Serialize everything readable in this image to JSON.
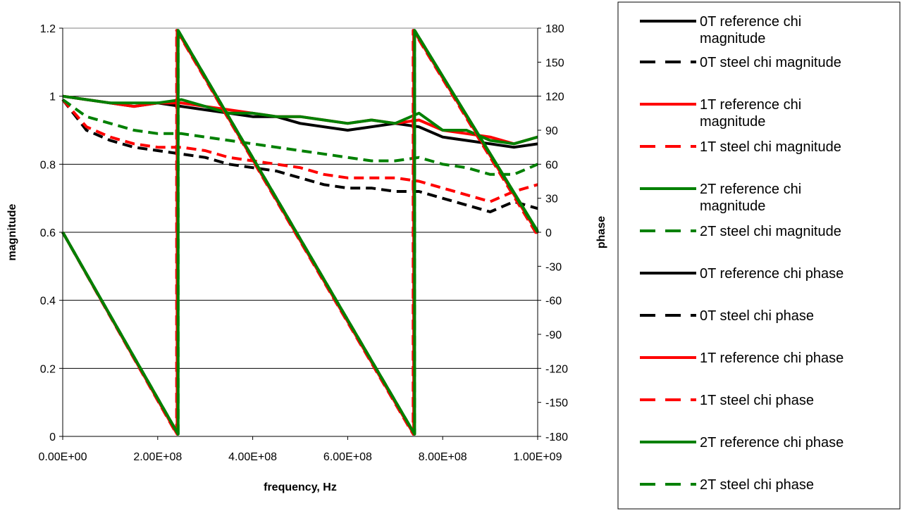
{
  "chart_data": {
    "type": "line",
    "title": "",
    "xlabel": "frequency, Hz",
    "ylabel": "magnitude",
    "y2label": "phase",
    "xlim": [
      0,
      1000000000
    ],
    "ylim": [
      0,
      1.2
    ],
    "y2lim": [
      -180,
      180
    ],
    "x_ticks": [
      "0.00E+00",
      "2.00E+08",
      "4.00E+08",
      "6.00E+08",
      "8.00E+08",
      "1.00E+09"
    ],
    "y_ticks": [
      "0",
      "0.2",
      "0.4",
      "0.6",
      "0.8",
      "1",
      "1.2"
    ],
    "y2_ticks": [
      "-180",
      "-150",
      "-120",
      "-90",
      "-60",
      "-30",
      "0",
      "30",
      "60",
      "90",
      "120",
      "150",
      "180"
    ],
    "grid": "horizontal",
    "legend_position": "right",
    "series": [
      {
        "name": "0T reference chi magnitude",
        "axis": "left",
        "style": "solid",
        "color": "#000000",
        "x": [
          0,
          50000000.0,
          100000000.0,
          150000000.0,
          200000000.0,
          250000000.0,
          300000000.0,
          350000000.0,
          400000000.0,
          450000000.0,
          500000000.0,
          550000000.0,
          600000000.0,
          650000000.0,
          700000000.0,
          750000000.0,
          800000000.0,
          850000000.0,
          900000000.0,
          950000000.0,
          1000000000.0
        ],
        "values": [
          1.0,
          0.99,
          0.98,
          0.97,
          0.98,
          0.97,
          0.96,
          0.95,
          0.94,
          0.94,
          0.92,
          0.91,
          0.9,
          0.91,
          0.92,
          0.91,
          0.88,
          0.87,
          0.86,
          0.85,
          0.86
        ]
      },
      {
        "name": "0T steel chi magnitude",
        "axis": "left",
        "style": "dashed",
        "color": "#000000",
        "x": [
          0,
          50000000.0,
          100000000.0,
          150000000.0,
          200000000.0,
          250000000.0,
          300000000.0,
          350000000.0,
          400000000.0,
          450000000.0,
          500000000.0,
          550000000.0,
          600000000.0,
          650000000.0,
          700000000.0,
          750000000.0,
          800000000.0,
          850000000.0,
          900000000.0,
          950000000.0,
          1000000000.0
        ],
        "values": [
          0.99,
          0.9,
          0.87,
          0.85,
          0.84,
          0.83,
          0.82,
          0.8,
          0.79,
          0.78,
          0.76,
          0.74,
          0.73,
          0.73,
          0.72,
          0.72,
          0.7,
          0.68,
          0.66,
          0.69,
          0.67
        ]
      },
      {
        "name": "1T reference chi magnitude",
        "axis": "left",
        "style": "solid",
        "color": "#ff0000",
        "x": [
          0,
          50000000.0,
          100000000.0,
          150000000.0,
          200000000.0,
          250000000.0,
          300000000.0,
          350000000.0,
          400000000.0,
          450000000.0,
          500000000.0,
          550000000.0,
          600000000.0,
          650000000.0,
          700000000.0,
          750000000.0,
          800000000.0,
          850000000.0,
          900000000.0,
          950000000.0,
          1000000000.0
        ],
        "values": [
          1.0,
          0.99,
          0.98,
          0.97,
          0.98,
          0.98,
          0.97,
          0.96,
          0.95,
          0.94,
          0.94,
          0.93,
          0.92,
          0.93,
          0.92,
          0.93,
          0.9,
          0.89,
          0.88,
          0.86,
          0.88
        ]
      },
      {
        "name": "1T steel chi magnitude",
        "axis": "left",
        "style": "dashed",
        "color": "#ff0000",
        "x": [
          0,
          50000000.0,
          100000000.0,
          150000000.0,
          200000000.0,
          250000000.0,
          300000000.0,
          350000000.0,
          400000000.0,
          450000000.0,
          500000000.0,
          550000000.0,
          600000000.0,
          650000000.0,
          700000000.0,
          750000000.0,
          800000000.0,
          850000000.0,
          900000000.0,
          950000000.0,
          1000000000.0
        ],
        "values": [
          0.99,
          0.91,
          0.88,
          0.86,
          0.85,
          0.85,
          0.84,
          0.82,
          0.81,
          0.8,
          0.79,
          0.77,
          0.76,
          0.76,
          0.76,
          0.75,
          0.73,
          0.71,
          0.69,
          0.72,
          0.74
        ]
      },
      {
        "name": "2T reference chi magnitude",
        "axis": "left",
        "style": "solid",
        "color": "#008000",
        "x": [
          0,
          50000000.0,
          100000000.0,
          150000000.0,
          200000000.0,
          250000000.0,
          300000000.0,
          350000000.0,
          400000000.0,
          450000000.0,
          500000000.0,
          550000000.0,
          600000000.0,
          650000000.0,
          700000000.0,
          750000000.0,
          800000000.0,
          850000000.0,
          900000000.0,
          950000000.0,
          1000000000.0
        ],
        "values": [
          1.0,
          0.99,
          0.98,
          0.98,
          0.98,
          0.99,
          0.97,
          0.95,
          0.95,
          0.94,
          0.94,
          0.93,
          0.92,
          0.93,
          0.92,
          0.95,
          0.9,
          0.9,
          0.87,
          0.86,
          0.88
        ]
      },
      {
        "name": "2T steel chi magnitude",
        "axis": "left",
        "style": "dashed",
        "color": "#008000",
        "x": [
          0,
          50000000.0,
          100000000.0,
          150000000.0,
          200000000.0,
          250000000.0,
          300000000.0,
          350000000.0,
          400000000.0,
          450000000.0,
          500000000.0,
          550000000.0,
          600000000.0,
          650000000.0,
          700000000.0,
          750000000.0,
          800000000.0,
          850000000.0,
          900000000.0,
          950000000.0,
          1000000000.0
        ],
        "values": [
          0.99,
          0.94,
          0.92,
          0.9,
          0.89,
          0.89,
          0.88,
          0.87,
          0.86,
          0.85,
          0.84,
          0.83,
          0.82,
          0.81,
          0.81,
          0.82,
          0.8,
          0.79,
          0.77,
          0.77,
          0.8
        ]
      },
      {
        "name": "0T reference chi phase",
        "axis": "right",
        "style": "solid",
        "color": "#000000",
        "x": [
          0,
          242000000.0,
          242000000.0,
          740000000.0,
          740000000.0,
          1000000000.0
        ],
        "values": [
          0,
          -178,
          178,
          -178,
          178,
          0
        ]
      },
      {
        "name": "0T steel chi phase",
        "axis": "right",
        "style": "dashed",
        "color": "#000000",
        "x": [
          0,
          240000000.0,
          240000000.0,
          738000000.0,
          738000000.0,
          1000000000.0
        ],
        "values": [
          0,
          -178,
          178,
          -178,
          178,
          -2
        ]
      },
      {
        "name": "1T reference chi phase",
        "axis": "right",
        "style": "solid",
        "color": "#ff0000",
        "x": [
          0,
          241000000.0,
          241000000.0,
          739000000.0,
          739000000.0,
          1000000000.0
        ],
        "values": [
          0,
          -178,
          178,
          -178,
          178,
          -1
        ]
      },
      {
        "name": "1T steel chi phase",
        "axis": "right",
        "style": "dashed",
        "color": "#ff0000",
        "x": [
          0,
          240000000.0,
          240000000.0,
          738000000.0,
          738000000.0,
          1000000000.0
        ],
        "values": [
          0,
          -178,
          178,
          -178,
          178,
          -3
        ]
      },
      {
        "name": "2T reference chi phase",
        "axis": "right",
        "style": "solid",
        "color": "#008000",
        "x": [
          0,
          243000000.0,
          243000000.0,
          741000000.0,
          741000000.0,
          1000000000.0
        ],
        "values": [
          0,
          -178,
          178,
          -178,
          178,
          1
        ]
      },
      {
        "name": "2T steel chi phase",
        "axis": "right",
        "style": "dashed",
        "color": "#008000",
        "x": [
          0,
          243000000.0,
          243000000.0,
          741000000.0,
          741000000.0,
          1000000000.0
        ],
        "values": [
          0,
          -178,
          178,
          -178,
          178,
          0
        ]
      }
    ]
  }
}
